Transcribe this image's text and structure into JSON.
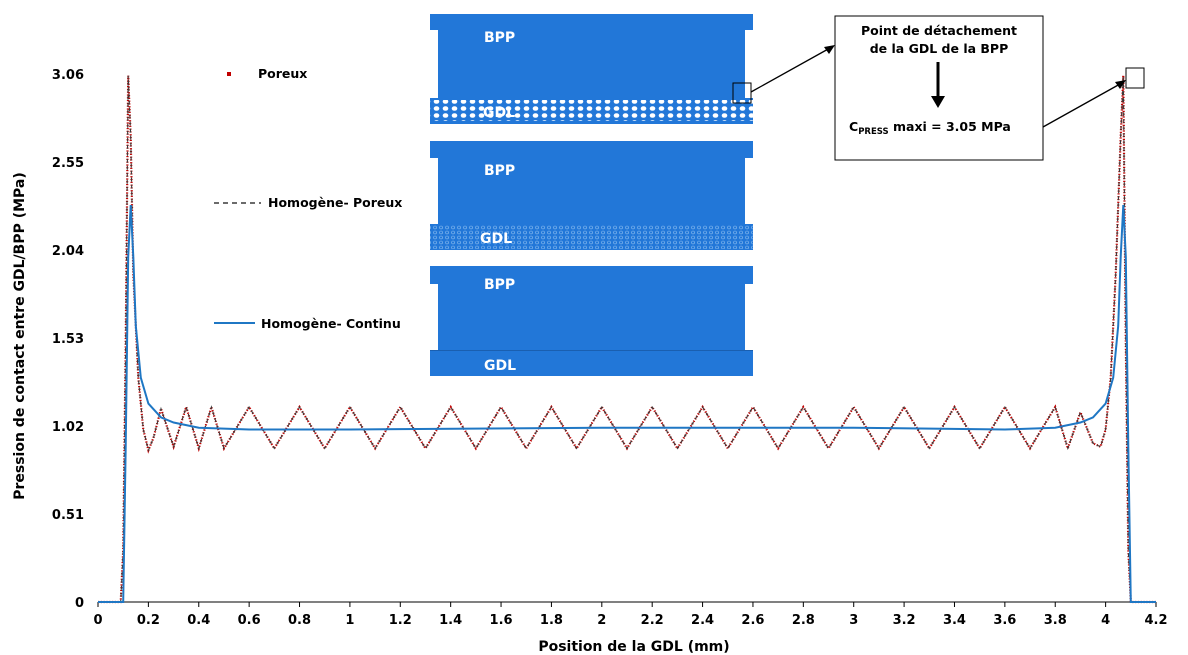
{
  "chart_data": {
    "type": "line",
    "title": "",
    "xlabel": "Position de la GDL (mm)",
    "ylabel": "Pression de contact entre GDL/BPP (MPa)",
    "xlim": [
      0,
      4.2
    ],
    "ylim": [
      0,
      3.06
    ],
    "xticks": [
      "0",
      "0.2",
      "0.4",
      "0.6",
      "0.8",
      "1",
      "1.2",
      "1.4",
      "1.6",
      "1.8",
      "2",
      "2.2",
      "2.4",
      "2.6",
      "2.8",
      "3",
      "3.2",
      "3.4",
      "3.6",
      "3.8",
      "4",
      "4.2"
    ],
    "yticks": [
      "0",
      "0.51",
      "1.02",
      "1.53",
      "2.04",
      "2.55",
      "3.06"
    ],
    "grid": false,
    "legend_position": "top-left",
    "series": [
      {
        "name": "Poreux",
        "style": "red-dots",
        "color": "#c00000",
        "x": [
          0,
          0.09,
          0.1,
          0.11,
          0.12,
          0.13,
          0.14,
          0.16,
          0.18,
          0.2,
          0.22,
          0.25,
          0.3,
          0.35,
          0.4,
          0.45,
          0.5,
          0.6,
          0.7,
          0.8,
          0.9,
          1.0,
          1.1,
          1.2,
          1.3,
          1.4,
          1.5,
          1.6,
          1.7,
          1.8,
          1.9,
          2.0,
          2.1,
          2.2,
          2.3,
          2.4,
          2.5,
          2.6,
          2.7,
          2.8,
          2.9,
          3.0,
          3.1,
          3.2,
          3.3,
          3.4,
          3.5,
          3.6,
          3.7,
          3.8,
          3.85,
          3.9,
          3.95,
          3.98,
          4.0,
          4.02,
          4.04,
          4.06,
          4.07,
          4.08,
          4.09,
          4.1,
          4.11,
          4.2
        ],
        "y": [
          0,
          0,
          0.3,
          1.5,
          3.05,
          2.7,
          1.9,
          1.3,
          1.0,
          0.88,
          0.95,
          1.12,
          0.9,
          1.13,
          0.89,
          1.13,
          0.89,
          1.13,
          0.89,
          1.13,
          0.89,
          1.13,
          0.89,
          1.13,
          0.89,
          1.13,
          0.89,
          1.13,
          0.89,
          1.13,
          0.89,
          1.13,
          0.89,
          1.13,
          0.89,
          1.13,
          0.89,
          1.13,
          0.89,
          1.13,
          0.89,
          1.13,
          0.89,
          1.13,
          0.89,
          1.13,
          0.89,
          1.13,
          0.89,
          1.13,
          0.89,
          1.1,
          0.92,
          0.9,
          1.0,
          1.3,
          1.9,
          2.7,
          3.05,
          1.5,
          0.3,
          0,
          0,
          0
        ]
      },
      {
        "name": "Homogène- Poreux",
        "style": "dashed",
        "color": "#3a3a3a",
        "x": [
          0,
          0.09,
          0.1,
          0.11,
          0.12,
          0.13,
          0.14,
          0.16,
          0.18,
          0.2,
          0.22,
          0.25,
          0.3,
          0.35,
          0.4,
          0.45,
          0.5,
          0.6,
          0.7,
          0.8,
          0.9,
          1.0,
          1.1,
          1.2,
          1.3,
          1.4,
          1.5,
          1.6,
          1.7,
          1.8,
          1.9,
          2.0,
          2.1,
          2.2,
          2.3,
          2.4,
          2.5,
          2.6,
          2.7,
          2.8,
          2.9,
          3.0,
          3.1,
          3.2,
          3.3,
          3.4,
          3.5,
          3.6,
          3.7,
          3.8,
          3.85,
          3.9,
          3.95,
          3.98,
          4.0,
          4.02,
          4.04,
          4.06,
          4.07,
          4.08,
          4.09,
          4.1,
          4.11,
          4.2
        ],
        "y": [
          0,
          0,
          0.3,
          1.5,
          3.05,
          2.7,
          1.9,
          1.3,
          1.0,
          0.88,
          0.95,
          1.12,
          0.9,
          1.13,
          0.89,
          1.13,
          0.89,
          1.13,
          0.89,
          1.13,
          0.89,
          1.13,
          0.89,
          1.13,
          0.89,
          1.13,
          0.89,
          1.13,
          0.89,
          1.13,
          0.89,
          1.13,
          0.89,
          1.13,
          0.89,
          1.13,
          0.89,
          1.13,
          0.89,
          1.13,
          0.89,
          1.13,
          0.89,
          1.13,
          0.89,
          1.13,
          0.89,
          1.13,
          0.89,
          1.13,
          0.89,
          1.1,
          0.92,
          0.9,
          1.0,
          1.3,
          1.9,
          2.7,
          3.05,
          1.5,
          0.3,
          0,
          0,
          0
        ]
      },
      {
        "name": "Homogène- Continu",
        "style": "solid",
        "color": "#1f77c4",
        "x": [
          0,
          0.1,
          0.11,
          0.12,
          0.13,
          0.14,
          0.15,
          0.17,
          0.2,
          0.25,
          0.3,
          0.4,
          0.6,
          1.0,
          2.0,
          3.0,
          3.6,
          3.8,
          3.9,
          3.95,
          4.0,
          4.03,
          4.05,
          4.06,
          4.07,
          4.08,
          4.09,
          4.1,
          4.11,
          4.2
        ],
        "y": [
          0,
          0,
          0.9,
          2.0,
          2.3,
          2.0,
          1.6,
          1.3,
          1.15,
          1.07,
          1.04,
          1.01,
          1.0,
          1.0,
          1.01,
          1.01,
          1.0,
          1.01,
          1.04,
          1.07,
          1.15,
          1.3,
          1.6,
          2.0,
          2.3,
          2.0,
          0.9,
          0,
          0,
          0
        ]
      }
    ],
    "annotations": {
      "callout_line1": "Point de détachement",
      "callout_line2": "de la GDL de la BPP",
      "callout_value_prefix": "C",
      "callout_value_sub": "PRESS",
      "callout_value_rest": " maxi = 3.05 MPa"
    }
  },
  "diagram": {
    "color": "#2277d8",
    "panels": [
      {
        "top_label": "BPP",
        "bottom_label": "GDL",
        "gdl_pattern": "large-pores"
      },
      {
        "top_label": "BPP",
        "bottom_label": "GDL",
        "gdl_pattern": "small-pores"
      },
      {
        "top_label": "BPP",
        "bottom_label": "GDL",
        "gdl_pattern": "continuous"
      }
    ]
  }
}
